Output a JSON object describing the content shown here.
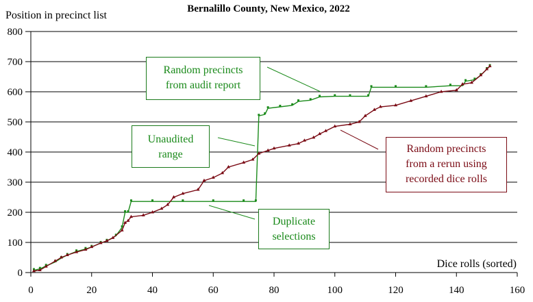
{
  "chart_data": {
    "type": "line",
    "title": "Bernalillo County, New Mexico, 2022",
    "xlabel": "Dice rolls (sorted)",
    "ylabel": "Position in precinct list",
    "xlim": [
      0,
      160
    ],
    "ylim": [
      0,
      800
    ],
    "xticks": [
      "0",
      "20",
      "40",
      "60",
      "80",
      "100",
      "120",
      "140",
      "160"
    ],
    "yticks": [
      "0",
      "100",
      "200",
      "300",
      "400",
      "500",
      "600",
      "700",
      "800"
    ],
    "grid": "horizontal",
    "series": [
      {
        "name": "Random precincts from audit report",
        "color": "#1a8a1a",
        "points": [
          [
            1,
            8
          ],
          [
            3,
            12
          ],
          [
            5,
            22
          ],
          [
            8,
            35
          ],
          [
            10,
            48
          ],
          [
            12,
            58
          ],
          [
            15,
            70
          ],
          [
            18,
            78
          ],
          [
            20,
            85
          ],
          [
            23,
            98
          ],
          [
            25,
            105
          ],
          [
            28,
            122
          ],
          [
            30,
            150
          ],
          [
            31,
            200
          ],
          [
            32,
            200
          ],
          [
            33,
            236
          ],
          [
            40,
            236
          ],
          [
            50,
            236
          ],
          [
            60,
            236
          ],
          [
            70,
            236
          ],
          [
            74,
            236
          ],
          [
            75,
            520
          ],
          [
            77,
            525
          ],
          [
            78,
            545
          ],
          [
            82,
            550
          ],
          [
            86,
            555
          ],
          [
            88,
            568
          ],
          [
            92,
            572
          ],
          [
            95,
            583
          ],
          [
            100,
            585
          ],
          [
            105,
            585
          ],
          [
            111,
            585
          ],
          [
            112,
            615
          ],
          [
            120,
            615
          ],
          [
            130,
            615
          ],
          [
            138,
            620
          ],
          [
            142,
            620
          ],
          [
            143,
            635
          ],
          [
            146,
            640
          ],
          [
            148,
            655
          ],
          [
            150,
            675
          ],
          [
            151,
            685
          ]
        ]
      },
      {
        "name": "Random precincts from a rerun using recorded dice rolls",
        "color": "#7a0a14",
        "points": [
          [
            1,
            5
          ],
          [
            3,
            8
          ],
          [
            5,
            20
          ],
          [
            8,
            38
          ],
          [
            10,
            50
          ],
          [
            12,
            58
          ],
          [
            15,
            68
          ],
          [
            18,
            76
          ],
          [
            20,
            85
          ],
          [
            23,
            98
          ],
          [
            25,
            105
          ],
          [
            27,
            115
          ],
          [
            30,
            140
          ],
          [
            31,
            165
          ],
          [
            32,
            172
          ],
          [
            33,
            185
          ],
          [
            37,
            190
          ],
          [
            40,
            200
          ],
          [
            43,
            212
          ],
          [
            45,
            225
          ],
          [
            47,
            250
          ],
          [
            50,
            262
          ],
          [
            55,
            275
          ],
          [
            57,
            305
          ],
          [
            60,
            315
          ],
          [
            63,
            330
          ],
          [
            65,
            350
          ],
          [
            70,
            365
          ],
          [
            73,
            375
          ],
          [
            75,
            395
          ],
          [
            78,
            405
          ],
          [
            80,
            412
          ],
          [
            85,
            422
          ],
          [
            88,
            428
          ],
          [
            90,
            438
          ],
          [
            93,
            448
          ],
          [
            95,
            460
          ],
          [
            97,
            470
          ],
          [
            100,
            485
          ],
          [
            105,
            492
          ],
          [
            108,
            500
          ],
          [
            110,
            520
          ],
          [
            113,
            540
          ],
          [
            115,
            550
          ],
          [
            120,
            555
          ],
          [
            125,
            570
          ],
          [
            130,
            585
          ],
          [
            135,
            600
          ],
          [
            140,
            605
          ],
          [
            142,
            625
          ],
          [
            145,
            630
          ],
          [
            148,
            655
          ],
          [
            150,
            675
          ],
          [
            151,
            685
          ]
        ]
      }
    ],
    "annotations": [
      {
        "text": [
          "Random precincts",
          "from audit report"
        ],
        "color": "#1a8a1a"
      },
      {
        "text": [
          "Unaudited",
          "range"
        ],
        "color": "#1a8a1a"
      },
      {
        "text": [
          "Duplicate",
          "selections"
        ],
        "color": "#1a8a1a"
      },
      {
        "text": [
          "Random precincts",
          "from a rerun using",
          "recorded dice rolls"
        ],
        "color": "#7a0a14"
      }
    ]
  }
}
